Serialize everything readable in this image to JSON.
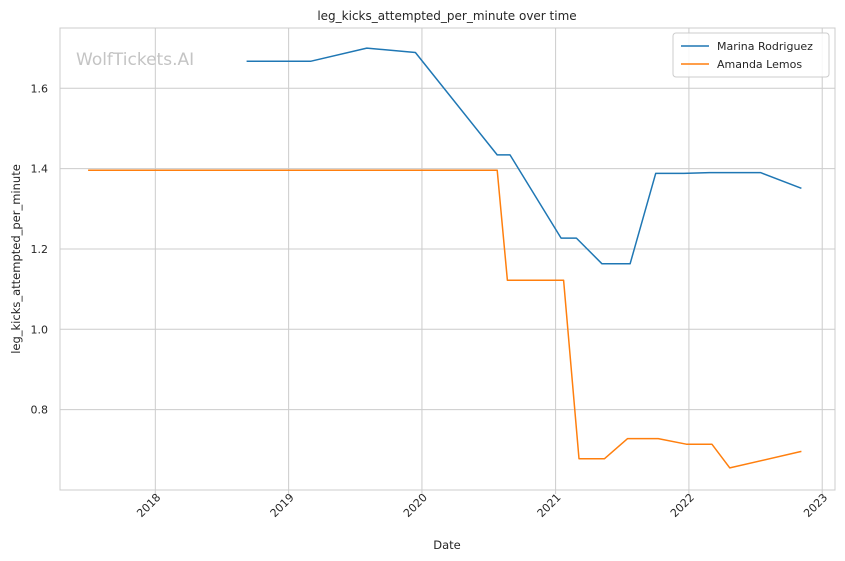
{
  "chart_data": {
    "type": "line",
    "title": "leg_kicks_attempted_per_minute over time",
    "xlabel": "Date",
    "ylabel": "leg_kicks_attempted_per_minute",
    "watermark": "WolfTickets.AI",
    "xlim": [
      "2017-04-15",
      "2023-02-05"
    ],
    "ylim": [
      0.6,
      1.75
    ],
    "x_ticks": [
      "2018-01-01",
      "2019-01-01",
      "2020-01-01",
      "2021-01-01",
      "2022-01-01",
      "2023-01-01"
    ],
    "x_tick_labels": [
      "2018",
      "2019",
      "2020",
      "2021",
      "2022",
      "2023"
    ],
    "y_ticks": [
      0.8,
      1.0,
      1.2,
      1.4,
      1.6
    ],
    "y_tick_labels": [
      "0.8",
      "1.0",
      "1.2",
      "1.4",
      "1.6"
    ],
    "grid": true,
    "legend_position": "top-right",
    "series": [
      {
        "name": "Marina Rodriguez",
        "color": "#1f77b4",
        "points": [
          [
            "2018-09-08",
            1.667
          ],
          [
            "2019-03-02",
            1.667
          ],
          [
            "2019-08-03",
            1.7
          ],
          [
            "2019-12-14",
            1.689
          ],
          [
            "2020-07-25",
            1.434
          ],
          [
            "2020-08-29",
            1.434
          ],
          [
            "2021-01-16",
            1.227
          ],
          [
            "2021-02-27",
            1.227
          ],
          [
            "2021-05-08",
            1.163
          ],
          [
            "2021-07-24",
            1.163
          ],
          [
            "2021-10-02",
            1.388
          ],
          [
            "2021-12-18",
            1.388
          ],
          [
            "2022-02-26",
            1.39
          ],
          [
            "2022-07-16",
            1.39
          ],
          [
            "2022-11-05",
            1.351
          ]
        ]
      },
      {
        "name": "Amanda Lemos",
        "color": "#ff7f0e",
        "points": [
          [
            "2017-07-01",
            1.396
          ],
          [
            "2020-07-25",
            1.396
          ],
          [
            "2020-08-22",
            1.122
          ],
          [
            "2021-01-23",
            1.122
          ],
          [
            "2021-03-06",
            0.678
          ],
          [
            "2021-05-15",
            0.678
          ],
          [
            "2021-07-17",
            0.728
          ],
          [
            "2021-10-09",
            0.728
          ],
          [
            "2021-12-25",
            0.714
          ],
          [
            "2022-03-05",
            0.714
          ],
          [
            "2022-04-23",
            0.655
          ],
          [
            "2022-11-05",
            0.696
          ]
        ]
      }
    ]
  }
}
